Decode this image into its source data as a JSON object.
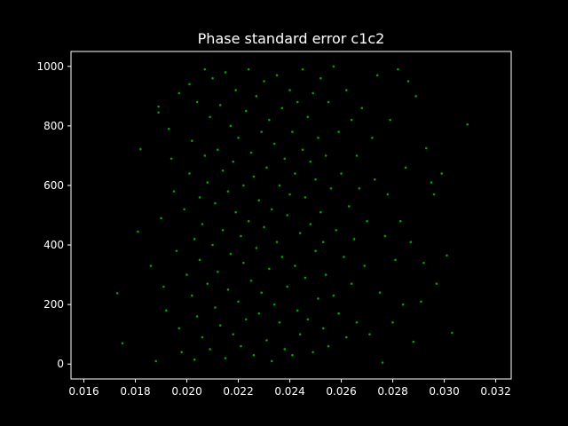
{
  "chart_data": {
    "type": "scatter",
    "title": "Phase standard error c1c2",
    "xlabel": "",
    "ylabel": "",
    "xlim": [
      0.0155,
      0.0326
    ],
    "ylim": [
      -50,
      1050
    ],
    "x_ticks": [
      "0.016",
      "0.018",
      "0.020",
      "0.022",
      "0.024",
      "0.026",
      "0.028",
      "0.030",
      "0.032"
    ],
    "y_ticks": [
      "0",
      "200",
      "400",
      "600",
      "800",
      "1000"
    ],
    "grid": false,
    "colors": {
      "background": "#000000",
      "axes": "#ffffff",
      "marker": "#00a000"
    },
    "points": [
      [
        0.0173,
        238
      ],
      [
        0.0175,
        70
      ],
      [
        0.0181,
        445
      ],
      [
        0.0182,
        722
      ],
      [
        0.0186,
        330
      ],
      [
        0.0188,
        10
      ],
      [
        0.0189,
        845
      ],
      [
        0.0189,
        865
      ],
      [
        0.019,
        490
      ],
      [
        0.0191,
        260
      ],
      [
        0.0192,
        180
      ],
      [
        0.0193,
        790
      ],
      [
        0.0194,
        690
      ],
      [
        0.0195,
        580
      ],
      [
        0.0196,
        380
      ],
      [
        0.0197,
        910
      ],
      [
        0.0197,
        120
      ],
      [
        0.0198,
        40
      ],
      [
        0.0199,
        520
      ],
      [
        0.02,
        300
      ],
      [
        0.0201,
        940
      ],
      [
        0.0201,
        640
      ],
      [
        0.0202,
        230
      ],
      [
        0.0202,
        750
      ],
      [
        0.0203,
        15
      ],
      [
        0.0203,
        420
      ],
      [
        0.0204,
        160
      ],
      [
        0.0204,
        880
      ],
      [
        0.0205,
        560
      ],
      [
        0.0205,
        350
      ],
      [
        0.0206,
        90
      ],
      [
        0.0206,
        470
      ],
      [
        0.0207,
        700
      ],
      [
        0.0207,
        990
      ],
      [
        0.0208,
        270
      ],
      [
        0.0208,
        610
      ],
      [
        0.0209,
        830
      ],
      [
        0.0209,
        50
      ],
      [
        0.021,
        400
      ],
      [
        0.021,
        960
      ],
      [
        0.0211,
        190
      ],
      [
        0.0211,
        540
      ],
      [
        0.0212,
        720
      ],
      [
        0.0212,
        310
      ],
      [
        0.0213,
        870
      ],
      [
        0.0213,
        130
      ],
      [
        0.0214,
        650
      ],
      [
        0.0214,
        450
      ],
      [
        0.0215,
        980
      ],
      [
        0.0215,
        20
      ],
      [
        0.0216,
        580
      ],
      [
        0.0216,
        250
      ],
      [
        0.0217,
        800
      ],
      [
        0.0217,
        370
      ],
      [
        0.0218,
        100
      ],
      [
        0.0218,
        680
      ],
      [
        0.0219,
        510
      ],
      [
        0.0219,
        920
      ],
      [
        0.022,
        210
      ],
      [
        0.022,
        760
      ],
      [
        0.0221,
        430
      ],
      [
        0.0221,
        60
      ],
      [
        0.0222,
        600
      ],
      [
        0.0222,
        340
      ],
      [
        0.0223,
        850
      ],
      [
        0.0223,
        150
      ],
      [
        0.0224,
        990
      ],
      [
        0.0224,
        480
      ],
      [
        0.0225,
        710
      ],
      [
        0.0225,
        280
      ],
      [
        0.0226,
        30
      ],
      [
        0.0226,
        630
      ],
      [
        0.0227,
        900
      ],
      [
        0.0227,
        390
      ],
      [
        0.0228,
        170
      ],
      [
        0.0228,
        550
      ],
      [
        0.0229,
        780
      ],
      [
        0.0229,
        240
      ],
      [
        0.023,
        460
      ],
      [
        0.023,
        950
      ],
      [
        0.0231,
        80
      ],
      [
        0.0231,
        660
      ],
      [
        0.0232,
        320
      ],
      [
        0.0232,
        820
      ],
      [
        0.0233,
        520
      ],
      [
        0.0233,
        10
      ],
      [
        0.0234,
        740
      ],
      [
        0.0234,
        200
      ],
      [
        0.0235,
        410
      ],
      [
        0.0235,
        970
      ],
      [
        0.0236,
        600
      ],
      [
        0.0236,
        140
      ],
      [
        0.0237,
        860
      ],
      [
        0.0237,
        360
      ],
      [
        0.0238,
        690
      ],
      [
        0.0238,
        50
      ],
      [
        0.0239,
        500
      ],
      [
        0.0239,
        260
      ],
      [
        0.024,
        920
      ],
      [
        0.024,
        570
      ],
      [
        0.0241,
        30
      ],
      [
        0.0241,
        780
      ],
      [
        0.0242,
        330
      ],
      [
        0.0242,
        640
      ],
      [
        0.0243,
        180
      ],
      [
        0.0243,
        880
      ],
      [
        0.0244,
        440
      ],
      [
        0.0244,
        100
      ],
      [
        0.0245,
        720
      ],
      [
        0.0245,
        990
      ],
      [
        0.0246,
        290
      ],
      [
        0.0246,
        560
      ],
      [
        0.0247,
        830
      ],
      [
        0.0247,
        150
      ],
      [
        0.0248,
        470
      ],
      [
        0.0248,
        680
      ],
      [
        0.0249,
        40
      ],
      [
        0.0249,
        910
      ],
      [
        0.025,
        380
      ],
      [
        0.025,
        620
      ],
      [
        0.0251,
        220
      ],
      [
        0.0251,
        760
      ],
      [
        0.0252,
        510
      ],
      [
        0.0252,
        960
      ],
      [
        0.0253,
        120
      ],
      [
        0.0253,
        410
      ],
      [
        0.0254,
        700
      ],
      [
        0.0254,
        300
      ],
      [
        0.0255,
        880
      ],
      [
        0.0255,
        60
      ],
      [
        0.0256,
        590
      ],
      [
        0.0257,
        230
      ],
      [
        0.0257,
        1000
      ],
      [
        0.0258,
        450
      ],
      [
        0.0259,
        780
      ],
      [
        0.0259,
        170
      ],
      [
        0.026,
        640
      ],
      [
        0.0261,
        360
      ],
      [
        0.0262,
        920
      ],
      [
        0.0262,
        90
      ],
      [
        0.0263,
        530
      ],
      [
        0.0264,
        270
      ],
      [
        0.0264,
        820
      ],
      [
        0.0265,
        420
      ],
      [
        0.0266,
        700
      ],
      [
        0.0266,
        140
      ],
      [
        0.0267,
        590
      ],
      [
        0.0268,
        860
      ],
      [
        0.0269,
        330
      ],
      [
        0.027,
        480
      ],
      [
        0.0271,
        100
      ],
      [
        0.0272,
        760
      ],
      [
        0.0273,
        620
      ],
      [
        0.0274,
        970
      ],
      [
        0.0275,
        240
      ],
      [
        0.0276,
        5
      ],
      [
        0.0277,
        430
      ],
      [
        0.0278,
        570
      ],
      [
        0.0279,
        820
      ],
      [
        0.028,
        140
      ],
      [
        0.0281,
        350
      ],
      [
        0.0282,
        990
      ],
      [
        0.0283,
        480
      ],
      [
        0.0284,
        200
      ],
      [
        0.0285,
        660
      ],
      [
        0.0286,
        950
      ],
      [
        0.0287,
        410
      ],
      [
        0.0288,
        75
      ],
      [
        0.0289,
        900
      ],
      [
        0.0291,
        210
      ],
      [
        0.0292,
        340
      ],
      [
        0.0293,
        725
      ],
      [
        0.0295,
        610
      ],
      [
        0.0296,
        570
      ],
      [
        0.0297,
        270
      ],
      [
        0.0299,
        640
      ],
      [
        0.0301,
        365
      ],
      [
        0.0303,
        105
      ],
      [
        0.0309,
        805
      ]
    ]
  }
}
